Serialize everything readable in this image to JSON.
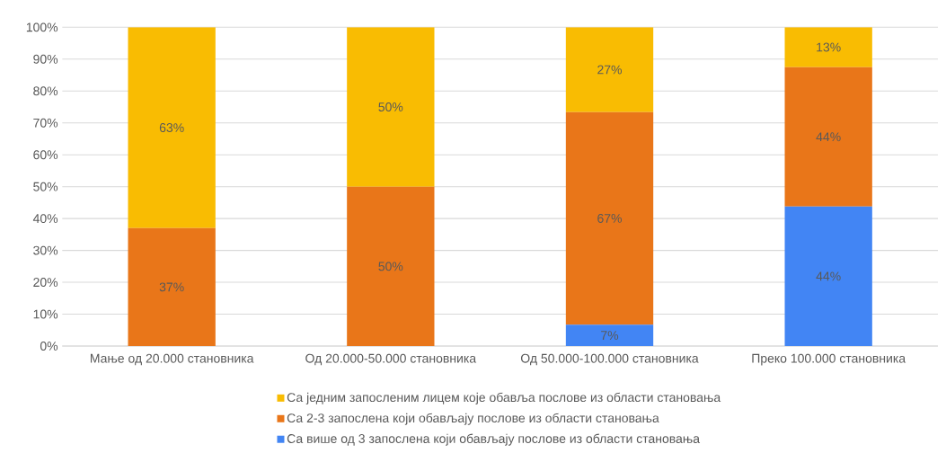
{
  "chart_data": {
    "type": "bar",
    "stacked": true,
    "categories": [
      "Мање од 20.000 становника",
      "Од 20.000-50.000 становника",
      "Од 50.000-100.000 становника",
      "Преко 100.000 становника"
    ],
    "series": [
      {
        "name": "Са више од 3 запослена који обављају послове из области становања",
        "color": "#4285f4",
        "values": [
          0,
          0,
          6.7,
          43.75
        ],
        "value_labels": [
          null,
          null,
          "7%",
          "44%"
        ]
      },
      {
        "name": "Са 2-3 запослена који обављају послове из области становања",
        "color": "#e97619",
        "values": [
          37,
          50,
          66.7,
          43.75
        ],
        "value_labels": [
          "37%",
          "50%",
          "67%",
          "44%"
        ]
      },
      {
        "name": "Са једним запосленим лицем које обавља послове из области становања",
        "color": "#f9bc02",
        "values": [
          63,
          50,
          26.6,
          12.5
        ],
        "value_labels": [
          "63%",
          "50%",
          "27%",
          "13%"
        ]
      }
    ],
    "ylim": [
      0,
      100
    ],
    "yticks": [
      {
        "value": 0,
        "label": "0%"
      },
      {
        "value": 10,
        "label": "10%"
      },
      {
        "value": 20,
        "label": "20%"
      },
      {
        "value": 30,
        "label": "30%"
      },
      {
        "value": 40,
        "label": "40%"
      },
      {
        "value": 50,
        "label": "50%"
      },
      {
        "value": 60,
        "label": "60%"
      },
      {
        "value": 70,
        "label": "70%"
      },
      {
        "value": 80,
        "label": "80%"
      },
      {
        "value": 90,
        "label": "90%"
      },
      {
        "value": 100,
        "label": "100%"
      }
    ],
    "grid": "y",
    "legend": "bottom"
  }
}
